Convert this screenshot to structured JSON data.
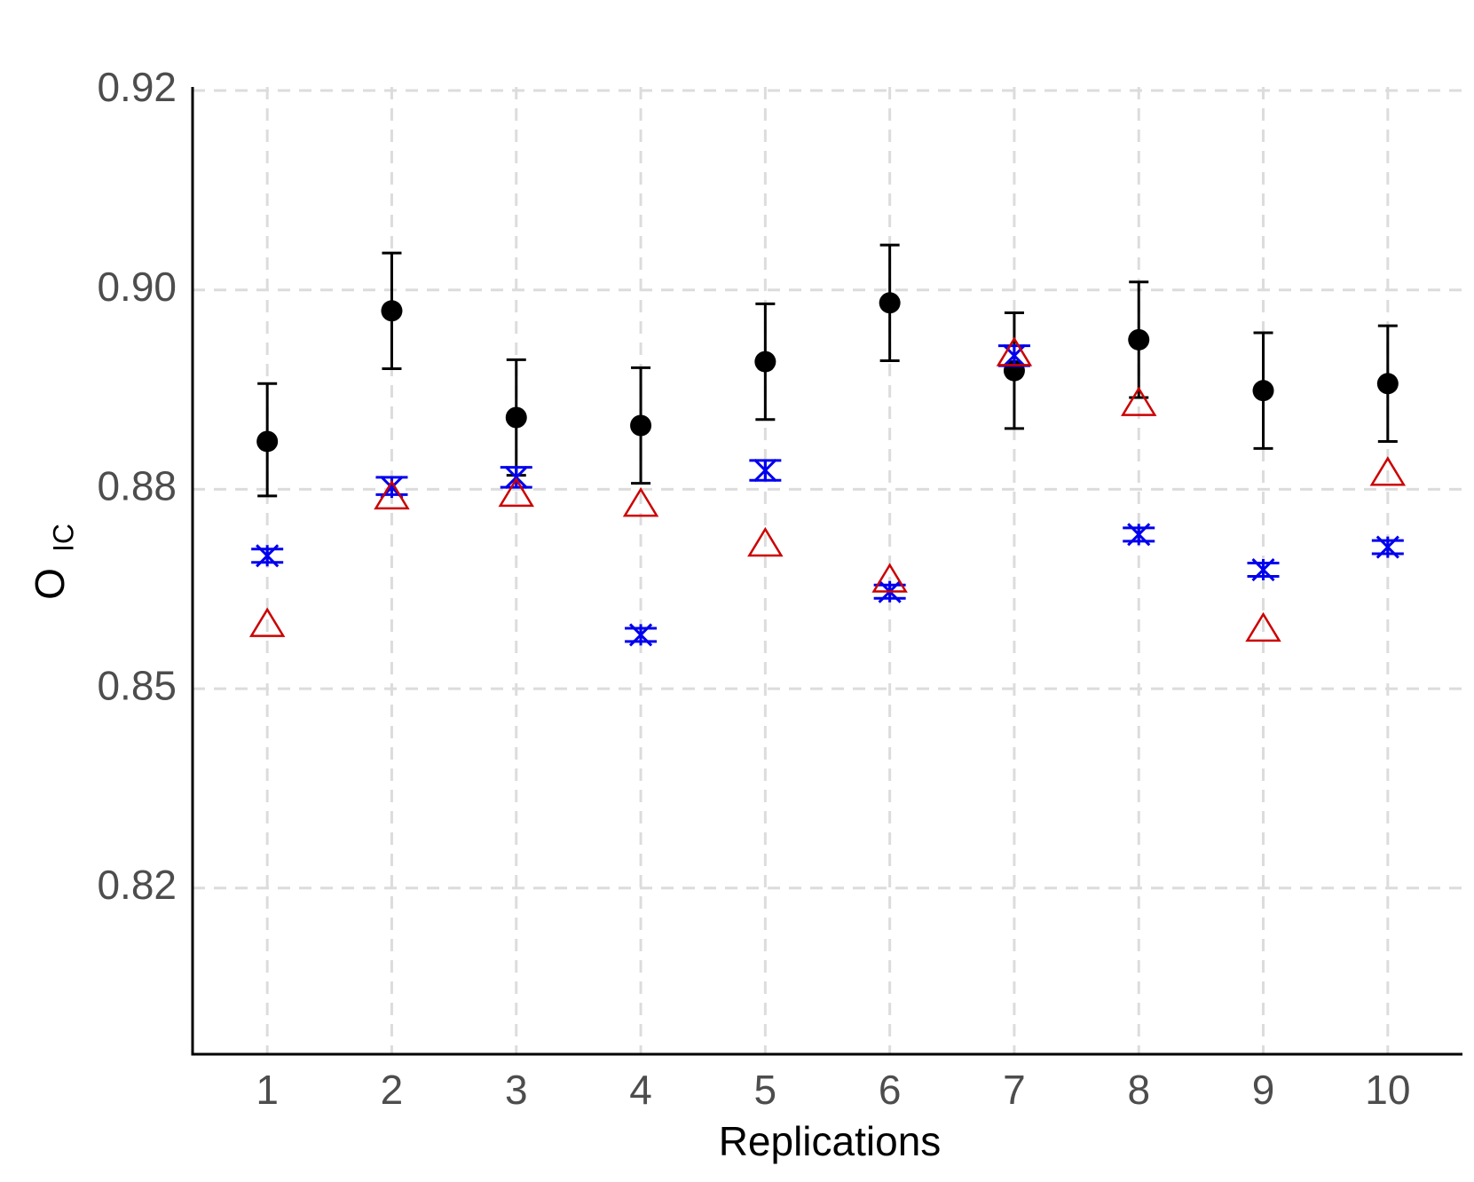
{
  "chart_data": {
    "type": "scatter",
    "xlabel": "Replications",
    "ylabel": "O",
    "ylabel_sub": "IC",
    "x": [
      1,
      2,
      3,
      4,
      5,
      6,
      7,
      8,
      9,
      10
    ],
    "xlim": [
      0.4,
      10.6
    ],
    "xticks": [
      1,
      2,
      3,
      4,
      5,
      6,
      7,
      8,
      9,
      10
    ],
    "ylim": [
      0.795,
      0.92
    ],
    "yticks": [
      {
        "value": 0.92,
        "label": "0.92"
      },
      {
        "value": 0.9,
        "label": "0.90"
      },
      {
        "value": 0.88,
        "label": "0.88"
      },
      {
        "value": 0.85,
        "label": "0.85"
      },
      {
        "value": 0.82,
        "label": "0.82"
      }
    ],
    "grid": true,
    "series": [
      {
        "marker": "circle",
        "color": "#000000",
        "values": [
          0.8848,
          0.8979,
          0.8872,
          0.8864,
          0.8928,
          0.8987,
          0.8919,
          0.895,
          0.8899,
          0.8906
        ],
        "error": 0.0058
      },
      {
        "marker": "star",
        "color": "#0000ee",
        "values": [
          0.87,
          0.8802,
          0.8812,
          0.8581,
          0.8819,
          0.8646,
          0.8934,
          0.8732,
          0.8679,
          0.8713
        ],
        "error": 0.001
      },
      {
        "marker": "triangle",
        "color": "#cc0000",
        "values": [
          0.8595,
          0.8787,
          0.8791,
          0.8776,
          0.8716,
          0.8662,
          0.8935,
          0.8885,
          0.8588,
          0.8815
        ]
      }
    ]
  }
}
